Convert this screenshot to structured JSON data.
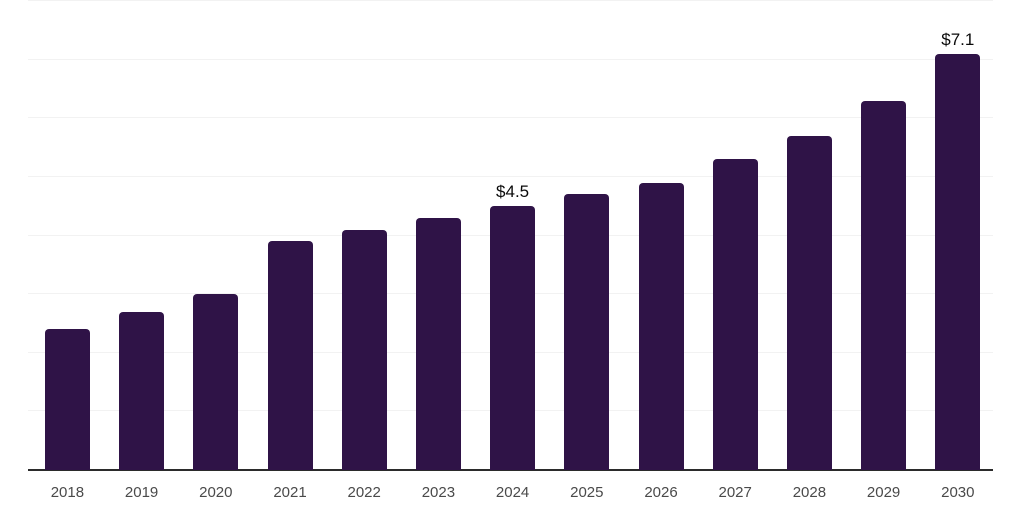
{
  "chart_data": {
    "type": "bar",
    "title": "",
    "xlabel": "",
    "ylabel": "",
    "categories": [
      "2018",
      "2019",
      "2020",
      "2021",
      "2022",
      "2023",
      "2024",
      "2025",
      "2026",
      "2027",
      "2028",
      "2029",
      "2030"
    ],
    "values": [
      2.4,
      2.7,
      3.0,
      3.9,
      4.1,
      4.3,
      4.5,
      4.7,
      4.9,
      5.3,
      5.7,
      6.3,
      7.1
    ],
    "data_labels": {
      "2024": "$4.5",
      "2030": "$7.1"
    },
    "ylim": [
      0,
      8
    ],
    "gridline_step": 1,
    "grid": "on",
    "legend": "none",
    "colors": {
      "bar": "#2f1347",
      "axis_line": "#2b2b2b",
      "gridline": "#f2f2f2",
      "tick_label": "#4a4a4a",
      "data_label": "#0a0a0a",
      "background": "#ffffff"
    }
  }
}
